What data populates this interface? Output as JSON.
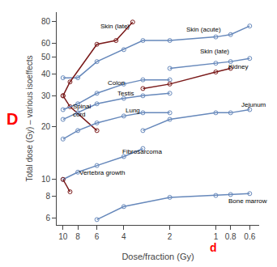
{
  "chart_data": {
    "type": "line",
    "xlabel": "Dose/fraction (Gy)",
    "ylabel": "Total dose (Gy) – various isoeffects",
    "log": true,
    "grid": false,
    "xlim": [
      11,
      0.52
    ],
    "ylim": [
      5.5,
      90
    ],
    "xticks": [
      10,
      8,
      6,
      4,
      2,
      1,
      0.8,
      0.6
    ],
    "yticks": [
      6,
      8,
      10,
      20,
      30,
      40,
      50,
      60,
      80
    ],
    "series": [
      {
        "color": "#6688bb",
        "marker": "circle-open",
        "x": [
          10,
          8,
          6,
          4,
          3,
          2,
          1,
          0.8,
          0.6
        ],
        "values": [
          38,
          38,
          47,
          55,
          62,
          62,
          65,
          67,
          75
        ]
      },
      {
        "color": "#7a1a1a",
        "marker": "circle-open",
        "x": [
          10,
          9,
          6,
          4.5,
          3.5
        ],
        "values": [
          30,
          36,
          59,
          62,
          79
        ]
      },
      {
        "color": "#6688bb",
        "marker": "circle-open",
        "x": [
          2,
          1,
          0.8,
          0.6
        ],
        "values": [
          43,
          46,
          47,
          49
        ]
      },
      {
        "color": "#7a1a1a",
        "marker": "circle-open",
        "x": [
          10,
          9,
          6
        ],
        "values": [
          30,
          26,
          19
        ]
      },
      {
        "color": "#6688bb",
        "marker": "circle-open",
        "x": [
          10,
          8,
          6,
          4,
          3,
          2
        ],
        "values": [
          25,
          27,
          31,
          35,
          37,
          37
        ]
      },
      {
        "color": "#6688bb",
        "marker": "circle-open",
        "x": [
          10,
          8,
          6,
          4,
          3,
          2
        ],
        "values": [
          22,
          24,
          27,
          29,
          30,
          31
        ]
      },
      {
        "color": "#6688bb",
        "marker": "circle-open",
        "x": [
          10,
          8,
          6,
          4,
          3,
          2
        ],
        "values": [
          17,
          19,
          21,
          23,
          24,
          24
        ]
      },
      {
        "color": "#7a1a1a",
        "marker": "circle-open",
        "x": [
          3,
          2,
          1,
          0.8
        ],
        "values": [
          33,
          35,
          41,
          43
        ]
      },
      {
        "color": "#6688bb",
        "marker": "circle-open",
        "x": [
          3,
          2,
          1,
          0.8,
          0.6
        ],
        "values": [
          19,
          22,
          24,
          24,
          25
        ]
      },
      {
        "color": "#6688bb",
        "marker": "circle-open",
        "x": [
          10,
          8,
          6,
          4,
          3
        ],
        "values": [
          10,
          11,
          12,
          13.5,
          15
        ]
      },
      {
        "color": "#7a1a1a",
        "marker": "circle-open",
        "x": [
          10,
          9
        ],
        "values": [
          10,
          8.5
        ]
      },
      {
        "color": "#6688bb",
        "marker": "circle-open",
        "x": [
          6,
          4,
          2,
          1,
          0.8,
          0.6
        ],
        "values": [
          5.9,
          7.0,
          7.9,
          8.1,
          8.2,
          8.3
        ]
      }
    ],
    "annotations": [
      {
        "text": "Skin (acute)",
        "x": 1.6,
        "y": 67,
        "color": "black"
      },
      {
        "text": "Skin (late)",
        "x": 5.8,
        "y": 70,
        "color": "black"
      },
      {
        "text": "Skin (late)",
        "x": 1.3,
        "y": 50,
        "color": "black"
      },
      {
        "text": "Spinal\ncord",
        "x": 8.8,
        "y": 22,
        "color": "black"
      },
      {
        "text": "Colon",
        "x": 5.2,
        "y": 33,
        "color": "black"
      },
      {
        "text": "Testis",
        "x": 4.5,
        "y": 29,
        "color": "black"
      },
      {
        "text": "Lung",
        "x": 4.0,
        "y": 23,
        "color": "black"
      },
      {
        "text": "Kidney",
        "x": 0.85,
        "y": 41,
        "color": "black"
      },
      {
        "text": "Jejunum",
        "x": 0.7,
        "y": 25,
        "color": "black"
      },
      {
        "text": "Fibrosarcoma",
        "x": 4.2,
        "y": 13.5,
        "color": "black"
      },
      {
        "text": "Vertebra growth",
        "x": 8.0,
        "y": 10.2,
        "color": "black"
      },
      {
        "text": "Bone marrow",
        "x": 0.85,
        "y": 7.0,
        "color": "black"
      },
      {
        "text": "D",
        "color": "red"
      },
      {
        "text": "d",
        "color": "red"
      }
    ]
  }
}
